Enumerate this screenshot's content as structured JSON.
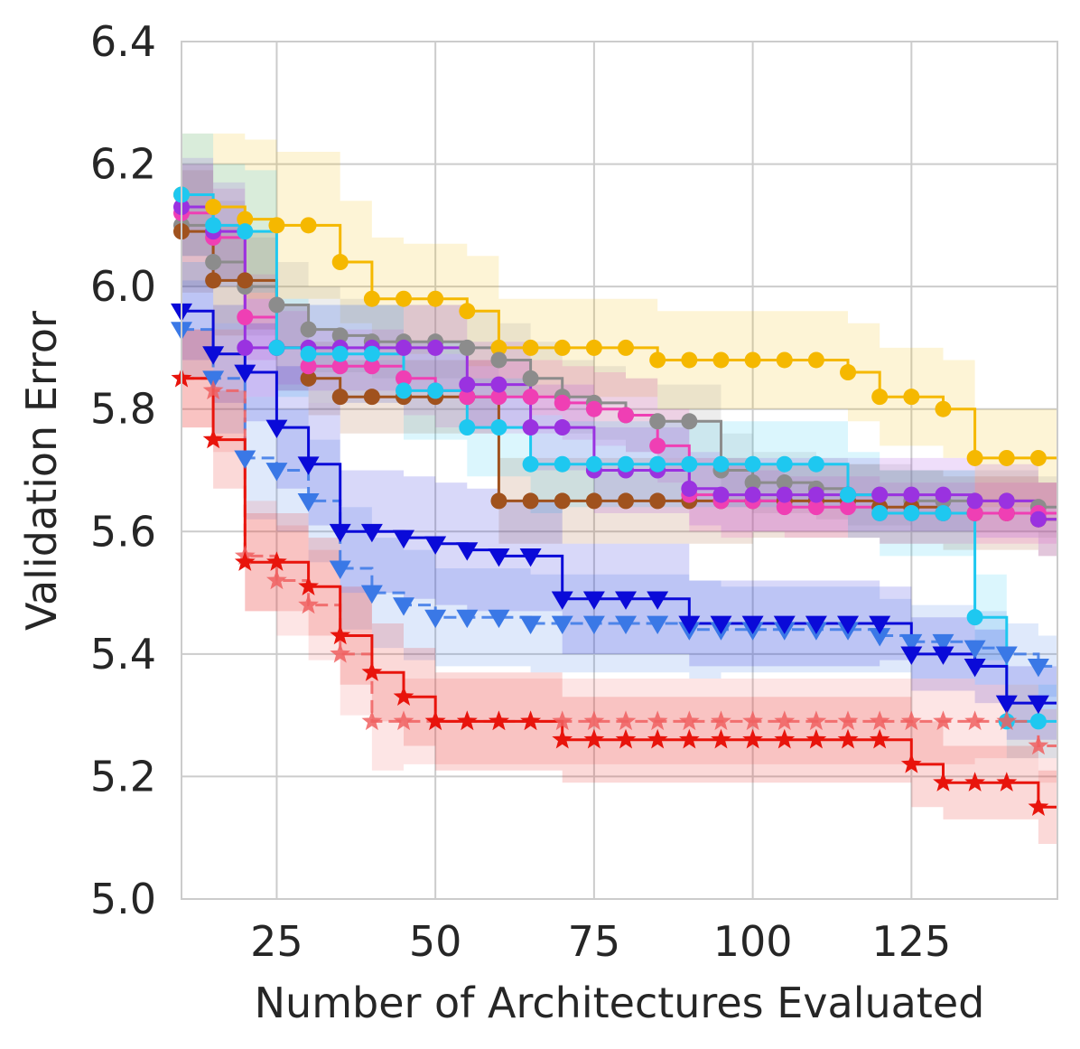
{
  "chart_data": {
    "type": "line",
    "title": "",
    "xlabel": "Number of Architectures Evaluated",
    "ylabel": "Validation Error",
    "xlim": [
      10,
      148
    ],
    "ylim": [
      5.0,
      6.4
    ],
    "grid": true,
    "x_ticks": [
      {
        "value": 25,
        "label": "25"
      },
      {
        "value": 50,
        "label": "50"
      },
      {
        "value": 75,
        "label": "75"
      },
      {
        "value": 100,
        "label": "100"
      },
      {
        "value": 125,
        "label": "125"
      }
    ],
    "y_ticks": [
      {
        "value": 5.0,
        "label": "5.0"
      },
      {
        "value": 5.2,
        "label": "5.2"
      },
      {
        "value": 5.4,
        "label": "5.4"
      },
      {
        "value": 5.6,
        "label": "5.6"
      },
      {
        "value": 5.8,
        "label": "5.8"
      },
      {
        "value": 6.0,
        "label": "6.0"
      },
      {
        "value": 6.2,
        "label": "6.2"
      },
      {
        "value": 6.4,
        "label": "6.4"
      }
    ],
    "x": [
      10,
      15,
      20,
      25,
      30,
      35,
      40,
      45,
      50,
      55,
      60,
      65,
      70,
      75,
      80,
      85,
      90,
      95,
      100,
      105,
      110,
      115,
      120,
      125,
      130,
      135,
      140,
      145,
      148
    ],
    "series": [
      {
        "name": "orange",
        "color": "#f5b800",
        "marker": "circle",
        "dashed": false,
        "values": [
          6.15,
          6.13,
          6.11,
          6.1,
          6.1,
          6.04,
          5.98,
          5.98,
          5.98,
          5.96,
          5.9,
          5.9,
          5.9,
          5.9,
          5.9,
          5.88,
          5.88,
          5.88,
          5.88,
          5.88,
          5.88,
          5.86,
          5.82,
          5.82,
          5.8,
          5.72,
          5.72,
          5.72,
          5.72
        ],
        "band": [
          0.1,
          0.12,
          0.13,
          0.12,
          0.12,
          0.1,
          0.1,
          0.09,
          0.09,
          0.09,
          0.08,
          0.08,
          0.08,
          0.08,
          0.08,
          0.08,
          0.08,
          0.08,
          0.08,
          0.08,
          0.08,
          0.08,
          0.08,
          0.08,
          0.08,
          0.08,
          0.08,
          0.08,
          0.08
        ]
      },
      {
        "name": "gray",
        "color": "#8c8c8c",
        "marker": "circle",
        "dashed": false,
        "values": [
          6.1,
          6.04,
          6.0,
          5.97,
          5.93,
          5.92,
          5.91,
          5.91,
          5.91,
          5.9,
          5.88,
          5.85,
          5.82,
          5.81,
          5.79,
          5.78,
          5.78,
          5.7,
          5.68,
          5.68,
          5.67,
          5.66,
          5.66,
          5.65,
          5.65,
          5.65,
          5.65,
          5.64,
          5.64
        ],
        "band": [
          0.1,
          0.1,
          0.08,
          0.07,
          0.07,
          0.06,
          0.06,
          0.06,
          0.06,
          0.06,
          0.06,
          0.06,
          0.06,
          0.06,
          0.06,
          0.06,
          0.06,
          0.06,
          0.05,
          0.05,
          0.05,
          0.05,
          0.05,
          0.05,
          0.05,
          0.05,
          0.05,
          0.05,
          0.05
        ]
      },
      {
        "name": "brown",
        "color": "#a0521e",
        "marker": "circle",
        "dashed": false,
        "values": [
          6.09,
          6.01,
          6.01,
          5.9,
          5.85,
          5.82,
          5.82,
          5.82,
          5.82,
          5.82,
          5.65,
          5.65,
          5.65,
          5.65,
          5.65,
          5.65,
          5.65,
          5.65,
          5.65,
          5.65,
          5.65,
          5.65,
          5.64,
          5.64,
          5.63,
          5.63,
          5.63,
          5.62,
          5.62
        ],
        "band": [
          0.1,
          0.09,
          0.08,
          0.07,
          0.06,
          0.06,
          0.06,
          0.06,
          0.06,
          0.06,
          0.07,
          0.07,
          0.07,
          0.07,
          0.07,
          0.07,
          0.07,
          0.07,
          0.06,
          0.06,
          0.06,
          0.06,
          0.06,
          0.06,
          0.06,
          0.06,
          0.06,
          0.06,
          0.06
        ]
      },
      {
        "name": "pink",
        "color": "#ef3fb4",
        "marker": "circle",
        "dashed": false,
        "values": [
          6.12,
          6.08,
          5.95,
          5.9,
          5.87,
          5.87,
          5.87,
          5.85,
          5.83,
          5.82,
          5.82,
          5.82,
          5.81,
          5.8,
          5.79,
          5.74,
          5.66,
          5.65,
          5.65,
          5.64,
          5.64,
          5.64,
          5.63,
          5.63,
          5.63,
          5.63,
          5.63,
          5.63,
          5.63
        ],
        "band": [
          0.08,
          0.08,
          0.07,
          0.06,
          0.06,
          0.06,
          0.06,
          0.06,
          0.06,
          0.06,
          0.06,
          0.06,
          0.06,
          0.06,
          0.06,
          0.06,
          0.06,
          0.06,
          0.05,
          0.05,
          0.05,
          0.05,
          0.05,
          0.05,
          0.05,
          0.05,
          0.05,
          0.05,
          0.05
        ]
      },
      {
        "name": "purple",
        "color": "#9a32e0",
        "marker": "circle",
        "dashed": false,
        "values": [
          6.13,
          6.09,
          5.9,
          5.9,
          5.9,
          5.9,
          5.9,
          5.9,
          5.9,
          5.84,
          5.84,
          5.77,
          5.77,
          5.7,
          5.7,
          5.7,
          5.67,
          5.66,
          5.66,
          5.66,
          5.66,
          5.66,
          5.66,
          5.66,
          5.66,
          5.65,
          5.65,
          5.62,
          5.62
        ],
        "band": [
          0.08,
          0.08,
          0.08,
          0.07,
          0.07,
          0.07,
          0.07,
          0.07,
          0.07,
          0.07,
          0.07,
          0.07,
          0.07,
          0.07,
          0.07,
          0.07,
          0.06,
          0.06,
          0.06,
          0.06,
          0.06,
          0.06,
          0.06,
          0.06,
          0.06,
          0.06,
          0.06,
          0.06,
          0.06
        ]
      },
      {
        "name": "cyan",
        "color": "#1ec8f0",
        "marker": "circle",
        "dashed": false,
        "values": [
          6.15,
          6.1,
          6.09,
          5.9,
          5.89,
          5.89,
          5.89,
          5.83,
          5.83,
          5.77,
          5.77,
          5.71,
          5.71,
          5.71,
          5.71,
          5.71,
          5.71,
          5.71,
          5.71,
          5.71,
          5.71,
          5.66,
          5.63,
          5.63,
          5.63,
          5.46,
          5.29,
          5.29,
          5.29
        ],
        "band": [
          0.1,
          0.1,
          0.1,
          0.08,
          0.08,
          0.08,
          0.08,
          0.08,
          0.08,
          0.08,
          0.08,
          0.08,
          0.07,
          0.07,
          0.07,
          0.07,
          0.07,
          0.07,
          0.07,
          0.07,
          0.07,
          0.07,
          0.07,
          0.07,
          0.07,
          0.07,
          0.06,
          0.06,
          0.06
        ]
      },
      {
        "name": "light-blue-dashed",
        "color": "#3a78e6",
        "marker": "triangle",
        "dashed": true,
        "values": [
          5.93,
          5.85,
          5.72,
          5.7,
          5.65,
          5.54,
          5.5,
          5.48,
          5.46,
          5.46,
          5.46,
          5.45,
          5.45,
          5.45,
          5.45,
          5.45,
          5.44,
          5.44,
          5.44,
          5.44,
          5.44,
          5.44,
          5.43,
          5.42,
          5.42,
          5.41,
          5.4,
          5.38,
          5.38
        ],
        "band": [
          0.08,
          0.09,
          0.1,
          0.1,
          0.1,
          0.1,
          0.09,
          0.09,
          0.08,
          0.08,
          0.08,
          0.08,
          0.08,
          0.08,
          0.08,
          0.08,
          0.08,
          0.07,
          0.07,
          0.07,
          0.07,
          0.07,
          0.06,
          0.06,
          0.06,
          0.06,
          0.05,
          0.05,
          0.05
        ]
      },
      {
        "name": "blue",
        "color": "#0a0ad8",
        "marker": "triangle",
        "dashed": false,
        "values": [
          5.96,
          5.89,
          5.86,
          5.77,
          5.71,
          5.6,
          5.6,
          5.59,
          5.58,
          5.57,
          5.56,
          5.56,
          5.49,
          5.49,
          5.49,
          5.49,
          5.45,
          5.45,
          5.45,
          5.45,
          5.45,
          5.45,
          5.45,
          5.4,
          5.4,
          5.38,
          5.32,
          5.32,
          5.32
        ],
        "band": [
          0.08,
          0.08,
          0.08,
          0.1,
          0.1,
          0.1,
          0.1,
          0.1,
          0.1,
          0.1,
          0.09,
          0.09,
          0.09,
          0.09,
          0.09,
          0.09,
          0.07,
          0.07,
          0.07,
          0.07,
          0.07,
          0.07,
          0.06,
          0.06,
          0.06,
          0.06,
          0.06,
          0.06,
          0.06
        ]
      },
      {
        "name": "salmon-dashed",
        "color": "#f06060",
        "marker": "star",
        "dashed": true,
        "values": [
          5.85,
          5.83,
          5.56,
          5.52,
          5.48,
          5.4,
          5.29,
          5.29,
          5.29,
          5.29,
          5.29,
          5.29,
          5.29,
          5.29,
          5.29,
          5.29,
          5.29,
          5.29,
          5.29,
          5.29,
          5.29,
          5.29,
          5.29,
          5.29,
          5.29,
          5.29,
          5.29,
          5.25,
          5.25
        ],
        "band": [
          0.08,
          0.1,
          0.09,
          0.09,
          0.09,
          0.1,
          0.08,
          0.07,
          0.07,
          0.07,
          0.07,
          0.07,
          0.07,
          0.07,
          0.07,
          0.07,
          0.07,
          0.07,
          0.07,
          0.07,
          0.07,
          0.07,
          0.07,
          0.07,
          0.07,
          0.06,
          0.06,
          0.06,
          0.06
        ]
      },
      {
        "name": "red",
        "color": "#e8140c",
        "marker": "star",
        "dashed": false,
        "values": [
          5.85,
          5.75,
          5.55,
          5.55,
          5.51,
          5.43,
          5.37,
          5.33,
          5.29,
          5.29,
          5.29,
          5.29,
          5.26,
          5.26,
          5.26,
          5.26,
          5.26,
          5.26,
          5.26,
          5.26,
          5.26,
          5.26,
          5.26,
          5.22,
          5.19,
          5.19,
          5.19,
          5.15,
          5.15
        ],
        "band": [
          0.08,
          0.08,
          0.08,
          0.08,
          0.08,
          0.08,
          0.08,
          0.08,
          0.08,
          0.08,
          0.08,
          0.08,
          0.07,
          0.07,
          0.07,
          0.07,
          0.07,
          0.07,
          0.07,
          0.07,
          0.07,
          0.07,
          0.07,
          0.07,
          0.06,
          0.06,
          0.06,
          0.06,
          0.06
        ]
      }
    ]
  }
}
